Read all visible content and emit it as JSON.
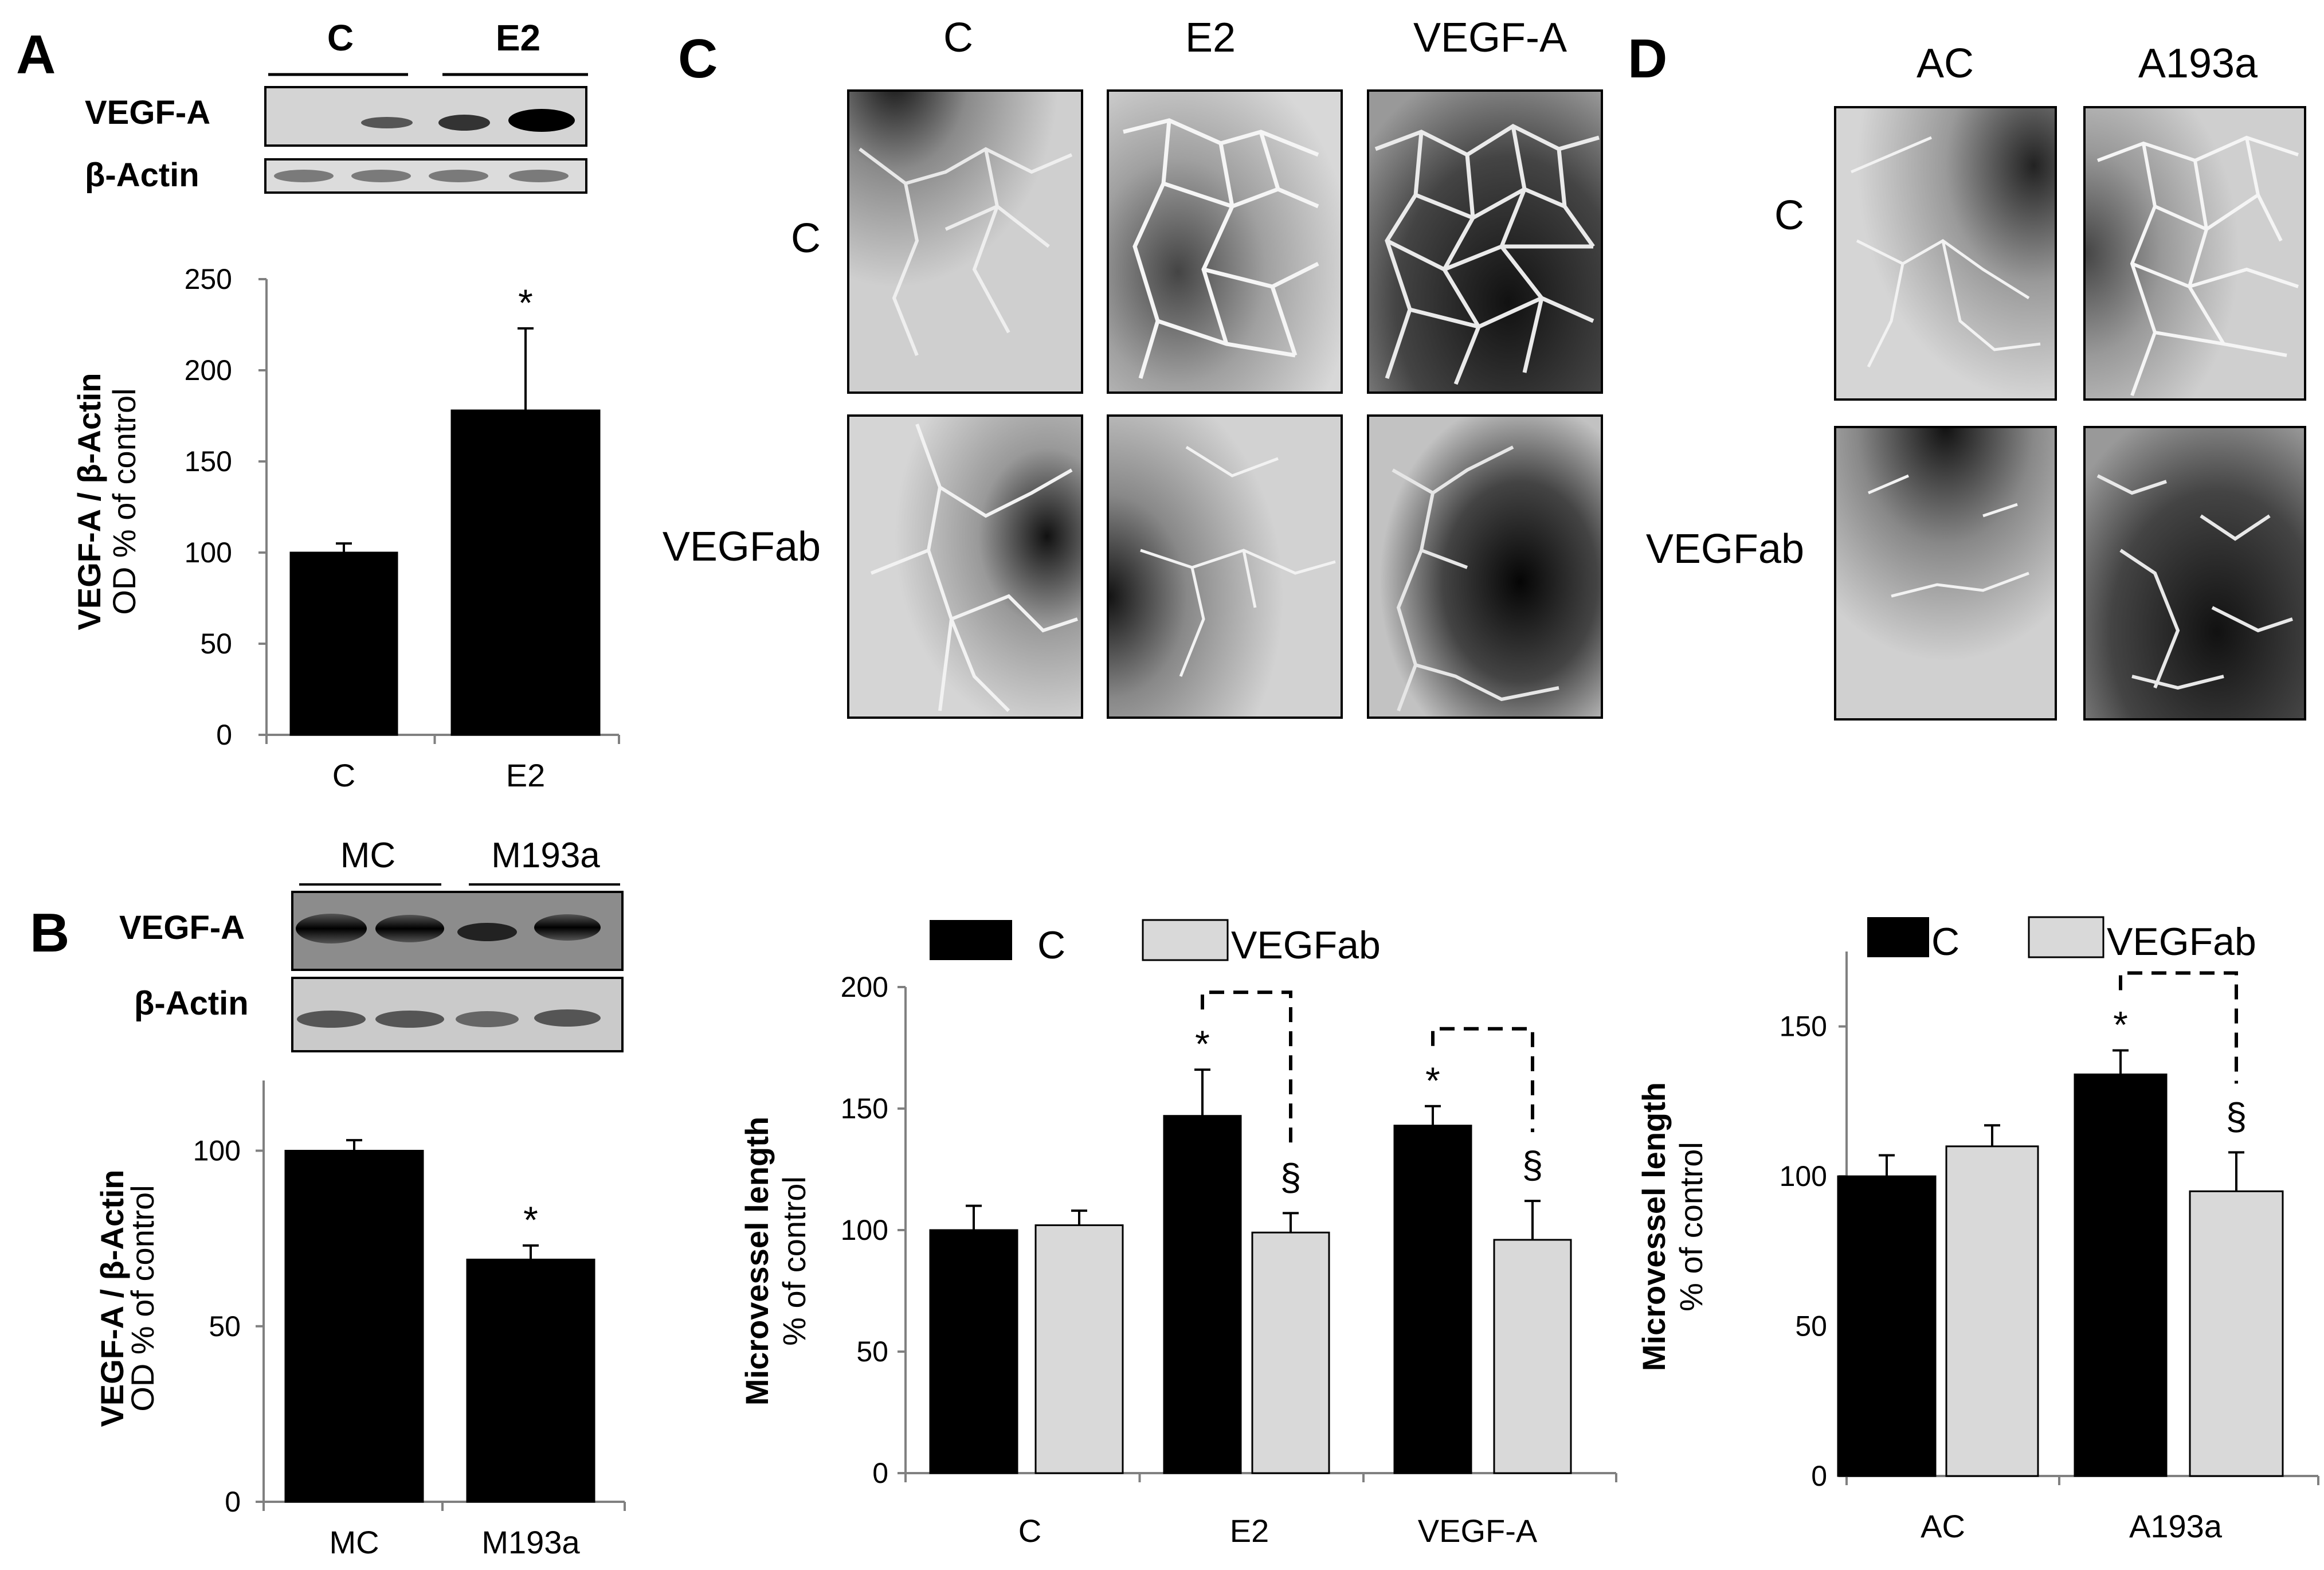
{
  "panel_letters": [
    "A",
    "B",
    "C",
    "D"
  ],
  "colors": {
    "black_bar": "#000000",
    "grey_bar": "#d9d9d9",
    "axis": "#808080"
  },
  "panelA": {
    "groups": [
      "C",
      "E2"
    ],
    "blot_rows": [
      "VEGF-A",
      "β-Actin"
    ],
    "ylabel_bold": "VEGF-A / β-Actin",
    "ylabel_sub": "OD % of control"
  },
  "panelB": {
    "groups": [
      "MC",
      "M193a"
    ],
    "blot_rows": [
      "VEGF-A",
      "β-Actin"
    ],
    "ylabel_bold": "VEGF-A / β-Actin",
    "ylabel_sub": "OD % of control"
  },
  "panelC": {
    "columns": [
      "C",
      "E2",
      "VEGF-A"
    ],
    "rows": [
      "C",
      "VEGFab"
    ],
    "ylabel_bold": "Microvessel length",
    "ylabel_sub": "% of control"
  },
  "panelD": {
    "columns": [
      "AC",
      "A193a"
    ],
    "rows": [
      "C",
      "VEGFab"
    ],
    "ylabel_bold": "Microvessel length",
    "ylabel_sub": "% of control"
  },
  "chart_data": [
    {
      "panel": "A",
      "type": "bar",
      "categories": [
        "C",
        "E2"
      ],
      "series": [
        {
          "values": [
            100,
            178
          ],
          "errors": [
            5,
            45
          ],
          "color": "#000000"
        }
      ],
      "ylim": [
        0,
        250
      ],
      "yticks": [
        0,
        50,
        100,
        150,
        200,
        250
      ],
      "significance": [
        {
          "category": "E2",
          "mark": "*"
        }
      ],
      "ylabel": "VEGF-A / β-Actin",
      "ylabel_sub": "OD % of control"
    },
    {
      "panel": "B",
      "type": "bar",
      "categories": [
        "MC",
        "M193a"
      ],
      "series": [
        {
          "values": [
            100,
            69
          ],
          "errors": [
            3,
            4
          ],
          "color": "#000000"
        }
      ],
      "ylim": [
        0,
        120
      ],
      "yticks": [
        0,
        50,
        100
      ],
      "significance": [
        {
          "category": "M193a",
          "mark": "*"
        }
      ],
      "ylabel": "VEGF-A / β-Actin",
      "ylabel_sub": "OD % of control"
    },
    {
      "panel": "C",
      "type": "bar",
      "categories": [
        "C",
        "E2",
        "VEGF-A"
      ],
      "legend": [
        "C",
        "VEGFab"
      ],
      "series": [
        {
          "name": "C",
          "values": [
            100,
            147,
            143
          ],
          "errors": [
            10,
            19,
            8
          ],
          "color": "#000000"
        },
        {
          "name": "VEGFab",
          "values": [
            102,
            99,
            96
          ],
          "errors": [
            6,
            8,
            16
          ],
          "color": "#d9d9d9"
        }
      ],
      "ylim": [
        0,
        200
      ],
      "yticks": [
        0,
        50,
        100,
        150,
        200
      ],
      "significance": [
        {
          "category": "E2",
          "series": "C",
          "mark": "*"
        },
        {
          "category": "E2",
          "series": "VEGFab",
          "mark": "§"
        },
        {
          "category": "VEGF-A",
          "series": "C",
          "mark": "*"
        },
        {
          "category": "VEGF-A",
          "series": "VEGFab",
          "mark": "§"
        }
      ],
      "ylabel": "Microvessel length",
      "ylabel_sub": "% of control"
    },
    {
      "panel": "D",
      "type": "bar",
      "categories": [
        "AC",
        "A193a"
      ],
      "legend": [
        "C",
        "VEGFab"
      ],
      "series": [
        {
          "name": "C",
          "values": [
            100,
            134
          ],
          "errors": [
            7,
            8
          ],
          "color": "#000000"
        },
        {
          "name": "VEGFab",
          "values": [
            110,
            95
          ],
          "errors": [
            7,
            13
          ],
          "color": "#d9d9d9"
        }
      ],
      "ylim": [
        0,
        175
      ],
      "yticks": [
        0,
        50,
        100,
        150
      ],
      "significance": [
        {
          "category": "A193a",
          "series": "C",
          "mark": "*"
        },
        {
          "category": "A193a",
          "series": "VEGFab",
          "mark": "§"
        }
      ],
      "ylabel": "Microvessel length",
      "ylabel_sub": "% of control"
    }
  ]
}
